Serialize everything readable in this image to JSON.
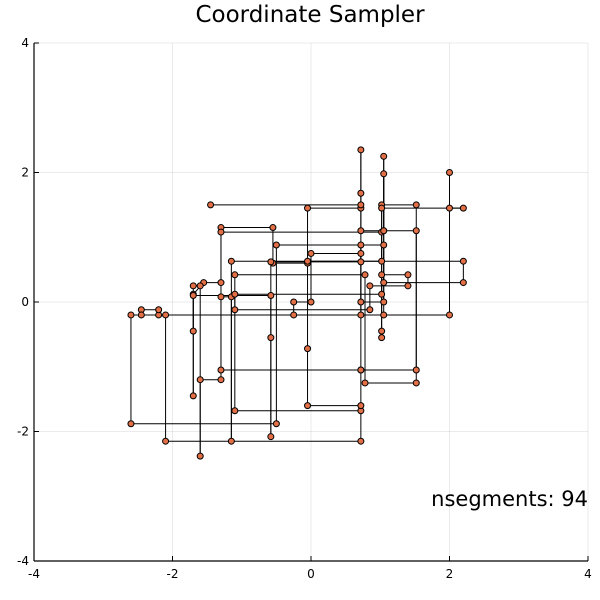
{
  "chart_data": {
    "type": "line",
    "title": "Coordinate Sampler",
    "xlabel": "",
    "ylabel": "",
    "xlim": [
      -4,
      4
    ],
    "ylim": [
      -4,
      4
    ],
    "xticks": [
      -4,
      -2,
      0,
      2,
      4
    ],
    "yticks": [
      -4,
      -2,
      0,
      2,
      4
    ],
    "xtick_labels": [
      "-4",
      "-2",
      "0",
      "2",
      "4"
    ],
    "ytick_labels": [
      "-4",
      "-2",
      "0",
      "2",
      "4"
    ],
    "grid": true,
    "legend": "none",
    "annotation": "nsegments: 94",
    "series": [
      {
        "color": "#e26f46",
        "line_color": "#000000",
        "points": [
          [
            -1.7,
            -0.45
          ],
          [
            -1.7,
            0.12
          ],
          [
            -1.55,
            0.3
          ],
          [
            -1.3,
            0.3
          ],
          [
            -1.3,
            1.15
          ],
          [
            -0.55,
            1.15
          ],
          [
            -0.55,
            0.6
          ],
          [
            -0.05,
            0.6
          ],
          [
            -0.05,
            1.45
          ],
          [
            0.72,
            1.45
          ],
          [
            0.72,
            2.35
          ],
          [
            0.72,
            1.68
          ],
          [
            0.72,
            -0.2
          ],
          [
            1.05,
            -0.2
          ],
          [
            1.05,
            2.25
          ],
          [
            1.05,
            1.1
          ],
          [
            1.52,
            1.1
          ],
          [
            1.52,
            -1.25
          ],
          [
            0.78,
            -1.25
          ],
          [
            0.78,
            0.42
          ],
          [
            -1.1,
            0.42
          ],
          [
            -1.1,
            -1.68
          ],
          [
            0.72,
            -1.68
          ],
          [
            0.72,
            -2.15
          ],
          [
            -2.1,
            -2.15
          ],
          [
            -2.1,
            -0.2
          ],
          [
            -2.6,
            -0.2
          ],
          [
            -2.6,
            -1.88
          ],
          [
            -0.5,
            -1.88
          ],
          [
            -0.5,
            0.88
          ],
          [
            1.05,
            0.88
          ],
          [
            1.05,
            0.3
          ],
          [
            2.2,
            0.3
          ],
          [
            2.2,
            0.63
          ],
          [
            -0.05,
            0.63
          ],
          [
            -0.05,
            -0.72
          ],
          [
            -0.05,
            -1.6
          ],
          [
            0.72,
            -1.6
          ],
          [
            0.72,
            -1.05
          ],
          [
            -1.3,
            -1.05
          ],
          [
            -1.3,
            0.08
          ],
          [
            -1.15,
            0.08
          ],
          [
            -1.15,
            -2.15
          ],
          [
            -1.15,
            0.63
          ],
          [
            1.02,
            0.63
          ],
          [
            1.02,
            1.08
          ],
          [
            -1.3,
            1.08
          ],
          [
            -1.3,
            -1.2
          ],
          [
            -1.6,
            -1.2
          ],
          [
            -1.6,
            -2.38
          ],
          [
            -1.6,
            0.25
          ],
          [
            -1.7,
            0.25
          ],
          [
            -1.7,
            -1.45
          ],
          [
            -1.7,
            0.1
          ],
          [
            -0.58,
            0.1
          ],
          [
            -0.58,
            -2.08
          ],
          [
            -0.58,
            -0.55
          ],
          [
            -0.58,
            0.62
          ],
          [
            0.72,
            0.62
          ],
          [
            0.72,
            0.88
          ],
          [
            0.72,
            -1.05
          ],
          [
            1.52,
            -1.05
          ],
          [
            1.52,
            1.5
          ],
          [
            1.02,
            1.5
          ],
          [
            1.02,
            0.12
          ],
          [
            -1.1,
            0.12
          ],
          [
            -1.1,
            -0.12
          ],
          [
            0.85,
            -0.12
          ],
          [
            0.85,
            0.25
          ],
          [
            1.4,
            0.25
          ],
          [
            1.4,
            0.42
          ],
          [
            1.02,
            0.42
          ],
          [
            1.02,
            -0.55
          ],
          [
            1.02,
            -0.45
          ],
          [
            1.02,
            1.45
          ],
          [
            2.2,
            1.45
          ],
          [
            2.0,
            1.45
          ],
          [
            2.0,
            2.0
          ],
          [
            2.0,
            -0.2
          ],
          [
            -2.2,
            -0.2
          ],
          [
            -2.2,
            -0.12
          ],
          [
            -2.45,
            -0.12
          ],
          [
            -2.45,
            -0.2
          ],
          [
            -0.25,
            -0.2
          ],
          [
            -0.25,
            0.0
          ],
          [
            0.0,
            0.0
          ],
          [
            0.0,
            0.75
          ],
          [
            0.72,
            0.75
          ],
          [
            0.72,
            0.0
          ],
          [
            1.05,
            0.0
          ],
          [
            1.05,
            1.98
          ],
          [
            1.05,
            1.1
          ],
          [
            0.72,
            1.1
          ],
          [
            0.72,
            1.5
          ],
          [
            -1.45,
            1.5
          ]
        ]
      }
    ]
  }
}
